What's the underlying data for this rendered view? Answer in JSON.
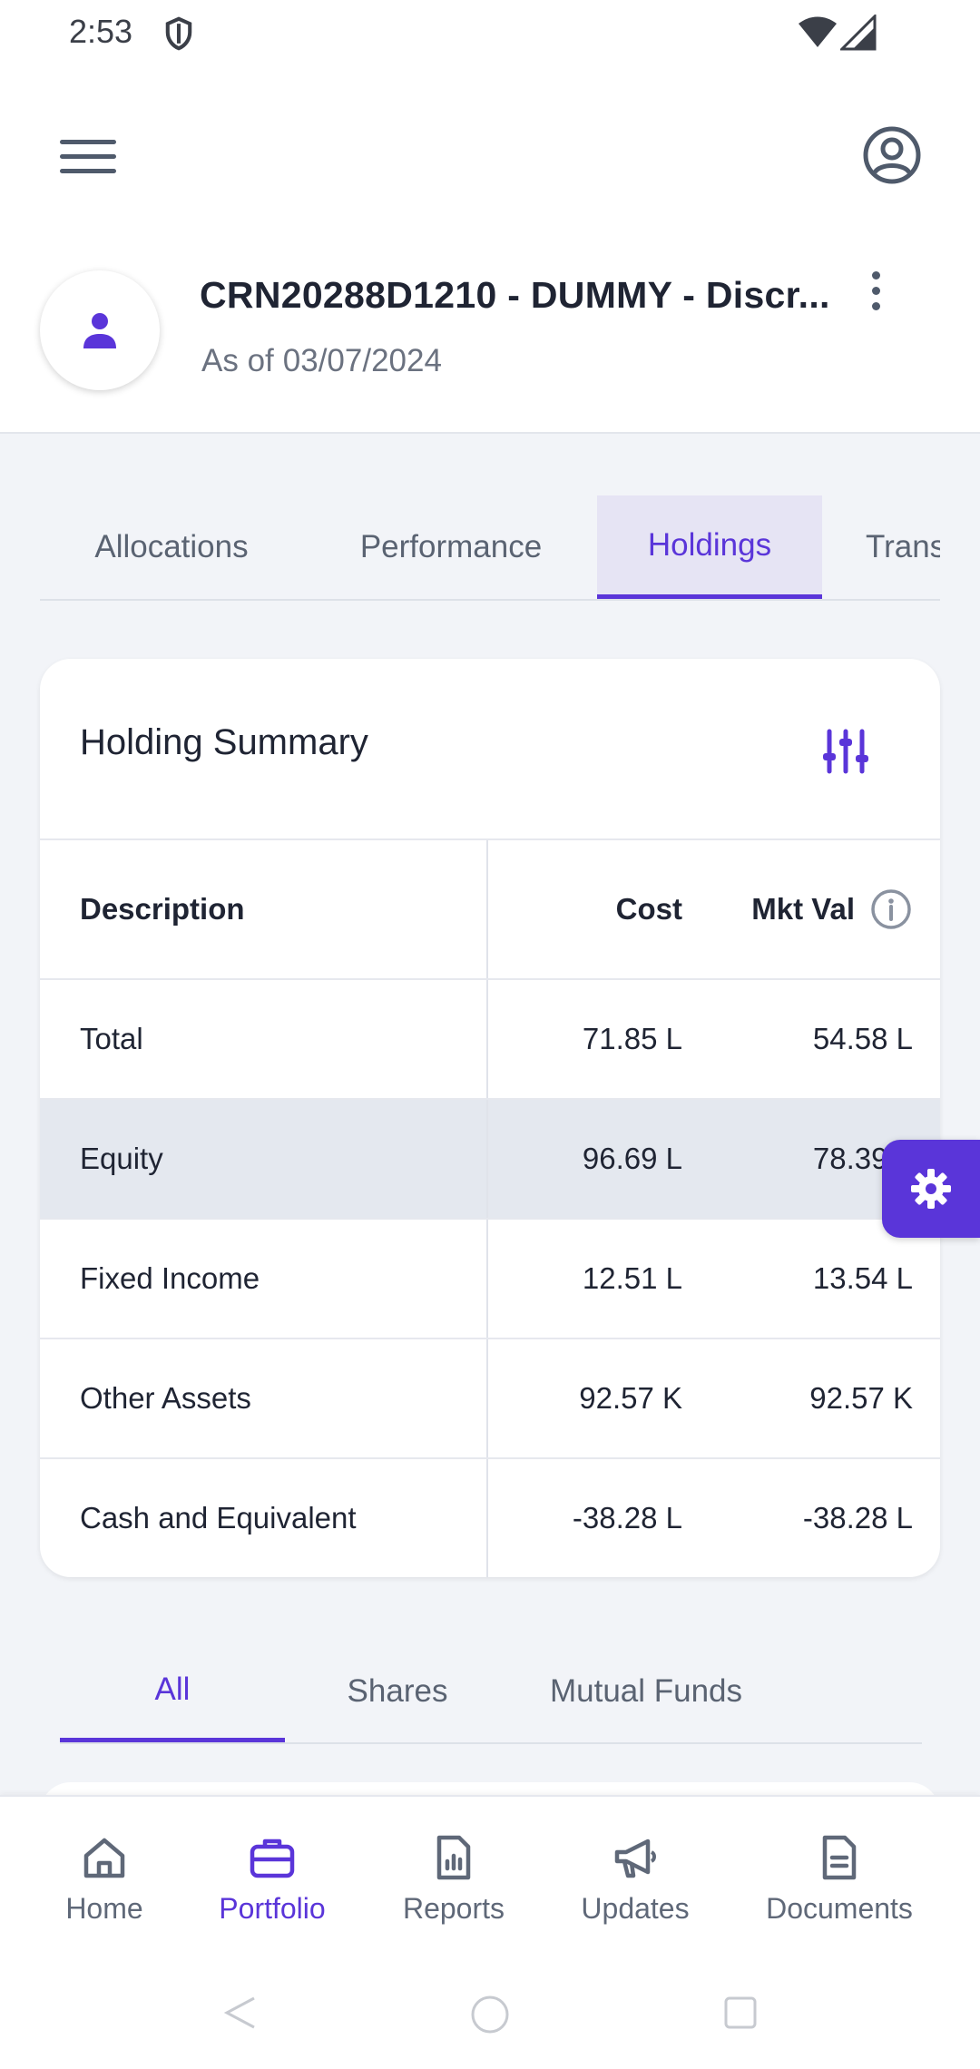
{
  "status_bar": {
    "time": "2:53"
  },
  "account": {
    "name": "CRN20288D1210 - DUMMY - Discr...",
    "as_of_label": "As of",
    "as_of_date": "03/07/2024"
  },
  "tabs": [
    {
      "label": "Allocations"
    },
    {
      "label": "Performance"
    },
    {
      "label": "Holdings"
    },
    {
      "label": "Trans"
    }
  ],
  "active_tab": "Holdings",
  "holding_summary": {
    "title": "Holding Summary",
    "columns": {
      "description": "Description",
      "cost": "Cost",
      "mkt_val": "Mkt Val"
    },
    "rows": [
      {
        "description": "Total",
        "cost": "71.85 L",
        "mkt_val": "54.58 L"
      },
      {
        "description": "Equity",
        "cost": "96.69 L",
        "mkt_val": "78.39 L"
      },
      {
        "description": "Fixed Income",
        "cost": "12.51 L",
        "mkt_val": "13.54 L"
      },
      {
        "description": "Other Assets",
        "cost": "92.57 K",
        "mkt_val": "92.57 K"
      },
      {
        "description": "Cash and Equivalent",
        "cost": "-38.28 L",
        "mkt_val": "-38.28 L"
      }
    ]
  },
  "sub_tabs": [
    {
      "label": "All"
    },
    {
      "label": "Shares"
    },
    {
      "label": "Mutual Funds"
    }
  ],
  "active_sub_tab": "All",
  "bottom_nav": [
    {
      "label": "Home",
      "icon": "home-icon"
    },
    {
      "label": "Portfolio",
      "icon": "briefcase-icon"
    },
    {
      "label": "Reports",
      "icon": "reports-icon"
    },
    {
      "label": "Updates",
      "icon": "megaphone-icon"
    },
    {
      "label": "Documents",
      "icon": "document-icon"
    }
  ],
  "active_nav": "Portfolio",
  "colors": {
    "accent": "#5a35d9",
    "tab_active_bg": "#e6e4f4",
    "row_highlight": "#e4e8ef",
    "page_bg": "#f2f4f8"
  }
}
